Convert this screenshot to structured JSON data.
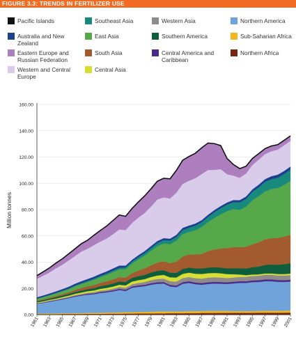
{
  "header": {
    "title": "FIGURE 3.3: TRENDS IN FERTILIZER USE",
    "color": "#f26b21"
  },
  "chart_data": {
    "type": "area",
    "stacked": true,
    "ylabel": "Million tonnes",
    "xlabel": "",
    "ylim": [
      0,
      160
    ],
    "y_ticks": [
      "0.00",
      "20.00",
      "40.00",
      "60.00",
      "80.00",
      "100.00",
      "120.00",
      "140.00",
      "160.00"
    ],
    "x_ticks": [
      "1961",
      "1963",
      "1965",
      "1967",
      "1969",
      "1971",
      "1973",
      "1975",
      "1977",
      "1979",
      "1981",
      "1983",
      "1985",
      "1987",
      "1989",
      "1991",
      "1993",
      "1995",
      "1997",
      "1999",
      "2001"
    ],
    "x": [
      1961,
      1962,
      1963,
      1964,
      1965,
      1966,
      1967,
      1968,
      1969,
      1970,
      1971,
      1972,
      1973,
      1974,
      1975,
      1976,
      1977,
      1978,
      1979,
      1980,
      1981,
      1982,
      1983,
      1984,
      1985,
      1986,
      1987,
      1988,
      1989,
      1990,
      1991,
      1992,
      1993,
      1994,
      1995,
      1996,
      1997,
      1998,
      1999,
      2000,
      2001
    ],
    "legend_placement": "top",
    "legend_order": [
      "Pacific Islands",
      "Southeast Asia",
      "Western Asia",
      "Northern America",
      "Australia and New Zealand",
      "East Asia",
      "Southern America",
      "Sub-Saharian Africa",
      "Eastern Europe and Russian Federation",
      "South Asia",
      "Central America and Caribbean",
      "Northern Africa",
      "Western and Central Europe",
      "Central Asia"
    ],
    "series": [
      {
        "name": "Pacific Islands",
        "color": "#111111",
        "values": [
          0.1,
          0.1,
          0.1,
          0.1,
          0.1,
          0.1,
          0.1,
          0.1,
          0.1,
          0.1,
          0.1,
          0.1,
          0.1,
          0.1,
          0.1,
          0.1,
          0.1,
          0.1,
          0.1,
          0.1,
          0.1,
          0.1,
          0.1,
          0.1,
          0.1,
          0.1,
          0.1,
          0.1,
          0.1,
          0.1,
          0.1,
          0.1,
          0.1,
          0.1,
          0.1,
          0.1,
          0.1,
          0.1,
          0.1,
          0.1,
          0.1
        ]
      },
      {
        "name": "Northern Africa",
        "color": "#7a2410",
        "values": [
          0.3,
          0.3,
          0.3,
          0.3,
          0.4,
          0.4,
          0.4,
          0.4,
          0.5,
          0.5,
          0.5,
          0.6,
          0.6,
          0.6,
          0.7,
          0.7,
          0.8,
          0.8,
          0.8,
          0.9,
          0.9,
          1.0,
          1.0,
          1.0,
          1.1,
          1.1,
          1.2,
          1.2,
          1.2,
          1.3,
          1.3,
          1.3,
          1.3,
          1.3,
          1.3,
          1.4,
          1.4,
          1.4,
          1.4,
          1.4,
          1.5
        ]
      },
      {
        "name": "Sub-Saharian Africa",
        "color": "#f2b51c",
        "values": [
          0.4,
          0.4,
          0.5,
          0.5,
          0.6,
          0.6,
          0.7,
          0.7,
          0.8,
          0.8,
          0.9,
          1.0,
          1.0,
          1.1,
          1.2,
          1.2,
          1.3,
          1.3,
          1.4,
          1.5,
          1.5,
          1.4,
          1.4,
          1.4,
          1.5,
          1.5,
          1.5,
          1.6,
          1.6,
          1.5,
          1.5,
          1.4,
          1.3,
          1.3,
          1.4,
          1.4,
          1.5,
          1.5,
          1.5,
          1.6,
          1.6
        ]
      },
      {
        "name": "Northern America",
        "color": "#6fa3da",
        "values": [
          7.5,
          8.2,
          9.0,
          9.8,
          10.5,
          11.5,
          12.5,
          13.3,
          13.8,
          14.2,
          15.0,
          15.3,
          16.0,
          17.0,
          16.0,
          18.5,
          19.0,
          19.5,
          20.5,
          21.0,
          21.2,
          19.0,
          18.5,
          21.0,
          21.5,
          20.5,
          20.0,
          20.5,
          20.8,
          20.7,
          20.5,
          21.0,
          21.5,
          21.5,
          22.0,
          22.0,
          22.5,
          22.5,
          22.0,
          21.8,
          22.0
        ]
      },
      {
        "name": "Central America and Caribbean",
        "color": "#4b2b8a",
        "values": [
          0.3,
          0.3,
          0.4,
          0.4,
          0.5,
          0.5,
          0.6,
          0.6,
          0.7,
          0.7,
          0.8,
          0.8,
          0.9,
          0.9,
          1.0,
          1.0,
          1.1,
          1.1,
          1.2,
          1.2,
          1.2,
          1.2,
          1.2,
          1.3,
          1.3,
          1.3,
          1.3,
          1.3,
          1.3,
          1.3,
          1.3,
          1.3,
          1.3,
          1.3,
          1.3,
          1.4,
          1.4,
          1.4,
          1.4,
          1.4,
          1.4
        ]
      },
      {
        "name": "Western Asia",
        "color": "#8f8a8c",
        "values": [
          0.3,
          0.3,
          0.4,
          0.4,
          0.5,
          0.5,
          0.6,
          0.7,
          0.8,
          0.9,
          1.0,
          1.1,
          1.2,
          1.4,
          1.5,
          1.7,
          1.9,
          2.1,
          2.3,
          2.5,
          2.6,
          2.8,
          3.0,
          3.1,
          3.2,
          3.3,
          3.4,
          3.5,
          3.5,
          3.4,
          3.2,
          3.2,
          3.3,
          3.3,
          3.4,
          3.4,
          3.5,
          3.5,
          3.5,
          3.5,
          3.5
        ]
      },
      {
        "name": "Central Asia",
        "color": "#d6de33",
        "values": [
          0.5,
          0.6,
          0.6,
          0.7,
          0.8,
          0.9,
          1.0,
          1.1,
          1.2,
          1.3,
          1.4,
          1.5,
          1.6,
          1.7,
          1.8,
          2.0,
          2.1,
          2.2,
          2.4,
          2.6,
          2.8,
          3.0,
          3.1,
          3.2,
          3.3,
          3.4,
          3.5,
          3.4,
          3.3,
          3.2,
          3.0,
          2.5,
          1.8,
          1.3,
          1.1,
          1.0,
          1.0,
          1.0,
          1.1,
          1.1,
          1.2
        ]
      },
      {
        "name": "Southern America",
        "color": "#0e5e3e",
        "values": [
          0.8,
          0.9,
          1.0,
          1.1,
          1.2,
          1.3,
          1.4,
          1.5,
          1.6,
          1.8,
          2.0,
          2.2,
          2.4,
          2.5,
          2.6,
          2.8,
          3.0,
          3.2,
          3.4,
          3.6,
          3.6,
          3.5,
          3.5,
          3.7,
          3.9,
          4.1,
          4.2,
          4.3,
          4.4,
          4.4,
          4.4,
          4.6,
          4.8,
          5.1,
          5.5,
          6.0,
          6.5,
          6.8,
          7.0,
          7.5,
          8.0
        ]
      },
      {
        "name": "South Asia",
        "color": "#a35a2e",
        "values": [
          0.5,
          0.6,
          0.7,
          0.9,
          1.0,
          1.2,
          1.5,
          1.9,
          2.1,
          2.3,
          2.5,
          2.8,
          3.0,
          3.2,
          3.3,
          3.6,
          4.3,
          5.0,
          5.5,
          6.3,
          6.8,
          7.2,
          8.5,
          9.5,
          10.0,
          10.5,
          11.0,
          12.5,
          13.5,
          14.5,
          15.5,
          16.0,
          16.0,
          16.5,
          17.5,
          18.5,
          19.5,
          20.0,
          20.5,
          21.0,
          21.5
        ]
      },
      {
        "name": "East Asia",
        "color": "#56a84a",
        "values": [
          1.4,
          1.6,
          1.8,
          2.0,
          2.2,
          2.4,
          2.8,
          3.1,
          3.4,
          4.0,
          4.4,
          5.0,
          5.6,
          6.0,
          6.5,
          7.3,
          8.5,
          9.7,
          11.0,
          12.5,
          13.5,
          14.5,
          16.0,
          17.0,
          17.0,
          18.5,
          20.5,
          22.0,
          24.0,
          26.0,
          28.0,
          29.0,
          28.5,
          30.5,
          33.5,
          35.0,
          36.5,
          37.5,
          38.0,
          39.5,
          41.0
        ]
      },
      {
        "name": "Southeast Asia",
        "color": "#17897d",
        "values": [
          0.2,
          0.3,
          0.3,
          0.4,
          0.4,
          0.5,
          0.6,
          0.6,
          0.7,
          0.8,
          0.9,
          1.0,
          1.1,
          1.2,
          1.3,
          1.5,
          1.7,
          1.9,
          2.1,
          2.3,
          2.5,
          2.7,
          2.9,
          3.1,
          3.3,
          3.5,
          3.7,
          4.0,
          4.3,
          4.6,
          5.0,
          5.3,
          5.6,
          6.0,
          6.4,
          6.8,
          7.2,
          7.5,
          7.8,
          8.2,
          8.6
        ]
      },
      {
        "name": "Australia and New Zealand",
        "color": "#1c3f8e",
        "values": [
          1.0,
          1.1,
          1.1,
          1.2,
          1.3,
          1.4,
          1.4,
          1.5,
          1.5,
          1.6,
          1.6,
          1.6,
          1.7,
          1.7,
          1.4,
          1.4,
          1.5,
          1.5,
          1.6,
          1.6,
          1.6,
          1.5,
          1.6,
          1.7,
          1.7,
          1.6,
          1.6,
          1.7,
          1.7,
          1.7,
          1.6,
          1.6,
          1.7,
          1.8,
          1.9,
          2.0,
          2.1,
          2.2,
          2.3,
          2.3,
          2.4
        ]
      },
      {
        "name": "Western and Central Europe",
        "color": "#d9ccea",
        "values": [
          14.0,
          15.0,
          16.0,
          17.5,
          18.5,
          20.0,
          21.0,
          22.5,
          23.0,
          24.0,
          24.5,
          25.0,
          26.0,
          27.5,
          27.0,
          28.0,
          28.5,
          29.0,
          30.0,
          31.5,
          31.0,
          30.5,
          32.0,
          33.5,
          34.0,
          34.5,
          35.0,
          34.0,
          30.5,
          28.0,
          21.5,
          18.5,
          17.0,
          17.5,
          18.5,
          19.0,
          19.0,
          19.0,
          19.0,
          19.5,
          19.5
        ]
      },
      {
        "name": "Eastern Europe and Russian Federation",
        "color": "#ad7fbf",
        "values": [
          2.5,
          3.0,
          3.5,
          4.0,
          4.5,
          5.0,
          5.5,
          6.0,
          6.5,
          7.5,
          8.5,
          9.5,
          10.5,
          11.0,
          10.5,
          11.0,
          12.0,
          13.0,
          13.5,
          14.0,
          14.5,
          15.0,
          17.0,
          18.0,
          18.5,
          19.0,
          20.0,
          20.5,
          20.0,
          18.0,
          12.0,
          8.5,
          7.0,
          5.5,
          5.0,
          4.6,
          4.2,
          4.0,
          3.8,
          3.8,
          3.8
        ]
      }
    ]
  }
}
